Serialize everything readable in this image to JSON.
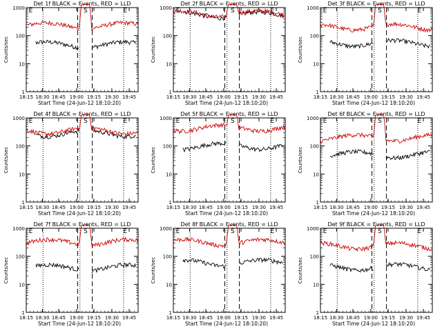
{
  "chart_data": [
    {
      "type": "line",
      "title": "Det 1f BLACK = Events, RED = LLD",
      "xlabel": "Start Time (24-Jun-12 18:10:20)",
      "ylabel": "Counts/sec",
      "yscale": "log",
      "ylim": [
        1,
        1000
      ],
      "yticks": [
        "1",
        "10",
        "100",
        "1000"
      ],
      "xticks": [
        "18:15",
        "18:30",
        "18:45",
        "19:00",
        "19:15",
        "19:30",
        "19:45"
      ],
      "markers": [
        "E",
        "S",
        "E"
      ],
      "series": [
        {
          "name": "Events",
          "color": "#000000",
          "level": 48,
          "gap_level": null
        },
        {
          "name": "LLD",
          "color": "#cc0000",
          "level": 230,
          "gap_level": 1000
        }
      ]
    },
    {
      "type": "line",
      "title": "Det 2f BLACK = Events, RED = LLD",
      "xlabel": "Start Time (24-Jun-12 18:10:20)",
      "ylabel": "Counts/sec",
      "yscale": "log",
      "ylim": [
        1,
        1000
      ],
      "yticks": [
        "1",
        "10",
        "100",
        "1000"
      ],
      "xticks": [
        "18:15",
        "18:30",
        "18:45",
        "19:00",
        "19:15",
        "19:30",
        "19:45"
      ],
      "markers": [
        "E",
        "S",
        "E"
      ],
      "series": [
        {
          "name": "Events",
          "color": "#000000",
          "level": 560,
          "gap_level": null
        },
        {
          "name": "LLD",
          "color": "#cc0000",
          "level": 620,
          "gap_level": 1000
        }
      ]
    },
    {
      "type": "line",
      "title": "Det 3f BLACK = Events, RED = LLD",
      "xlabel": "Start Time (24-Jun-12 18:10:20)",
      "ylabel": "Counts/sec",
      "yscale": "log",
      "ylim": [
        1,
        1000
      ],
      "yticks": [
        "1",
        "10",
        "100",
        "1000"
      ],
      "xticks": [
        "18:15",
        "18:30",
        "18:45",
        "19:00",
        "19:15",
        "19:30",
        "19:45"
      ],
      "markers": [
        "E",
        "S",
        "E"
      ],
      "series": [
        {
          "name": "Events",
          "color": "#000000",
          "level": 55,
          "gap_level": null
        },
        {
          "name": "LLD",
          "color": "#cc0000",
          "level": 210,
          "gap_level": 1000
        }
      ]
    },
    {
      "type": "line",
      "title": "Det 4f BLACK = Events, RED = LLD",
      "xlabel": "Start Time (24-Jun-12 18:10:20)",
      "ylabel": "Counts/sec",
      "yscale": "log",
      "ylim": [
        1,
        1000
      ],
      "yticks": [
        "1",
        "10",
        "100",
        "1000"
      ],
      "xticks": [
        "18:15",
        "18:30",
        "18:45",
        "19:00",
        "19:15",
        "19:30",
        "19:45"
      ],
      "markers": [
        "E",
        "S",
        "E"
      ],
      "series": [
        {
          "name": "Events",
          "color": "#000000",
          "level": 290,
          "gap_level": null
        },
        {
          "name": "LLD",
          "color": "#cc0000",
          "level": 360,
          "gap_level": 1000
        }
      ]
    },
    {
      "type": "line",
      "title": "Det 5f BLACK = Events, RED = LLD",
      "xlabel": "Start Time (24-Jun-12 18:10:20)",
      "ylabel": "Counts/sec",
      "yscale": "log",
      "ylim": [
        1,
        1000
      ],
      "yticks": [
        "1",
        "10",
        "100",
        "1000"
      ],
      "xticks": [
        "18:15",
        "18:30",
        "18:45",
        "19:00",
        "19:15",
        "19:30",
        "19:45"
      ],
      "markers": [
        "E",
        "S",
        "E"
      ],
      "series": [
        {
          "name": "Events",
          "color": "#000000",
          "level": 100,
          "gap_level": null
        },
        {
          "name": "LLD",
          "color": "#cc0000",
          "level": 450,
          "gap_level": 1000
        }
      ]
    },
    {
      "type": "line",
      "title": "Det 6f BLACK = Events, RED = LLD",
      "xlabel": "Start Time (24-Jun-12 18:10:20)",
      "ylabel": "Counts/sec",
      "yscale": "log",
      "ylim": [
        1,
        1000
      ],
      "yticks": [
        "1",
        "10",
        "100",
        "1000"
      ],
      "xticks": [
        "18:15",
        "18:30",
        "18:45",
        "19:00",
        "19:15",
        "19:30",
        "19:45"
      ],
      "markers": [
        "E",
        "S",
        "E"
      ],
      "series": [
        {
          "name": "Events",
          "color": "#000000",
          "level": 50,
          "gap_level": null
        },
        {
          "name": "LLD",
          "color": "#cc0000",
          "level": 200,
          "gap_level": 1000
        }
      ]
    },
    {
      "type": "line",
      "title": "Det 7f BLACK = Events, RED = LLD",
      "xlabel": "Start Time (24-Jun-12 18:10:20)",
      "ylabel": "Counts/sec",
      "yscale": "log",
      "ylim": [
        1,
        1000
      ],
      "yticks": [
        "1",
        "10",
        "100",
        "1000"
      ],
      "xticks": [
        "18:15",
        "18:30",
        "18:45",
        "19:00",
        "19:15",
        "19:30",
        "19:45"
      ],
      "markers": [
        "E",
        "S",
        "E"
      ],
      "series": [
        {
          "name": "Events",
          "color": "#000000",
          "level": 40,
          "gap_level": null
        },
        {
          "name": "LLD",
          "color": "#cc0000",
          "level": 320,
          "gap_level": 1000
        }
      ]
    },
    {
      "type": "line",
      "title": "Det 8f BLACK = Events, RED = LLD",
      "xlabel": "Start Time (24-Jun-12 18:10:20)",
      "ylabel": "Counts/sec",
      "yscale": "log",
      "ylim": [
        1,
        1000
      ],
      "yticks": [
        "1",
        "10",
        "100",
        "1000"
      ],
      "xticks": [
        "18:15",
        "18:30",
        "18:45",
        "19:00",
        "19:15",
        "19:30",
        "19:45"
      ],
      "markers": [
        "E",
        "S",
        "E"
      ],
      "series": [
        {
          "name": "Events",
          "color": "#000000",
          "level": 60,
          "gap_level": null
        },
        {
          "name": "LLD",
          "color": "#cc0000",
          "level": 320,
          "gap_level": 1000
        }
      ]
    },
    {
      "type": "line",
      "title": "Det 9f BLACK = Events, RED = LLD",
      "xlabel": "Start Time (24-Jun-12 18:10:20)",
      "ylabel": "Counts/sec",
      "yscale": "log",
      "ylim": [
        1,
        1000
      ],
      "yticks": [
        "1",
        "10",
        "100",
        "1000"
      ],
      "xticks": [
        "18:15",
        "18:30",
        "18:45",
        "19:00",
        "19:15",
        "19:30",
        "19:45"
      ],
      "markers": [
        "E",
        "S",
        "E"
      ],
      "series": [
        {
          "name": "Events",
          "color": "#000000",
          "level": 42,
          "gap_level": null
        },
        {
          "name": "LLD",
          "color": "#cc0000",
          "level": 240,
          "gap_level": 1000
        }
      ]
    }
  ]
}
